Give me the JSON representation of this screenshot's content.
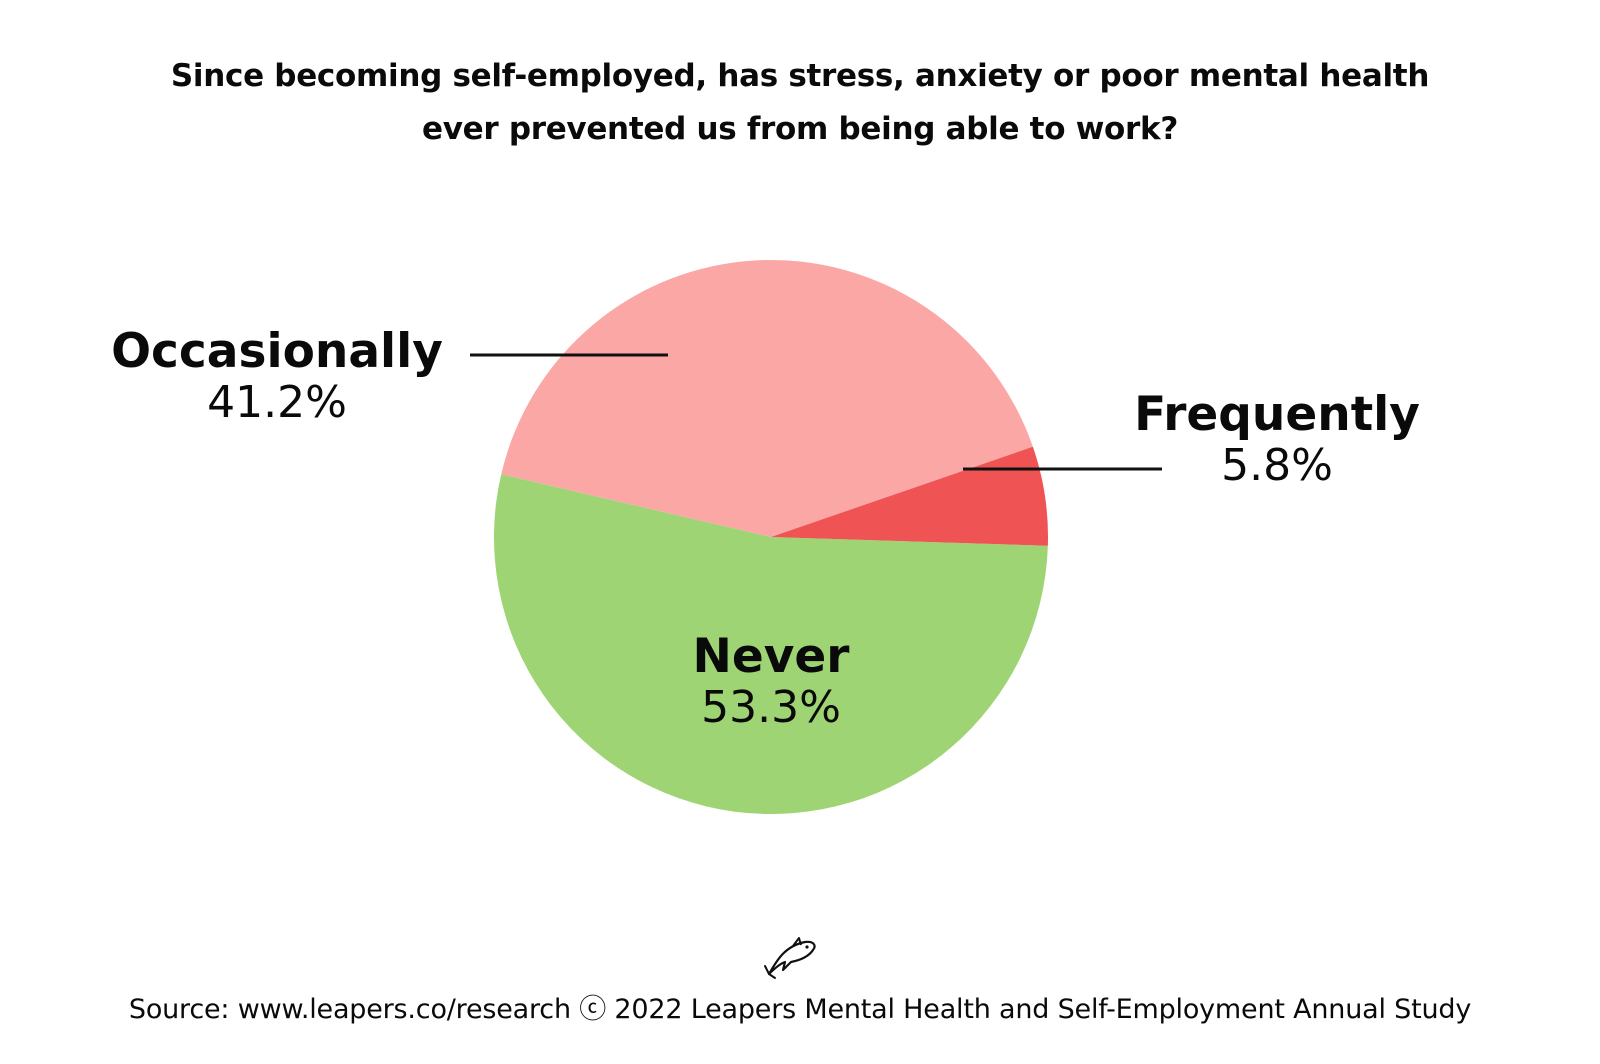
{
  "title_lines": [
    "Since becoming self-employed, has stress, anxiety or poor mental health",
    "ever prevented us from being able to work?"
  ],
  "chart_data": {
    "type": "pie",
    "title": "Since becoming self-employed, has stress, anxiety or poor mental health ever prevented us from being able to work?",
    "slices": [
      {
        "label": "Never",
        "value": 53.3,
        "value_label": "53.3%",
        "color": "#9ed474"
      },
      {
        "label": "Occasionally",
        "value": 41.2,
        "value_label": "41.2%",
        "color": "#fba7a6"
      },
      {
        "label": "Frequently",
        "value": 5.8,
        "value_label": "5.8%",
        "color": "#ef5353"
      }
    ]
  },
  "logo": {
    "icon": "leaping-fish-icon"
  },
  "source": "Source: www.leapers.co/research ⓒ 2022 Leapers Mental Health and Self-Employment Annual Study"
}
